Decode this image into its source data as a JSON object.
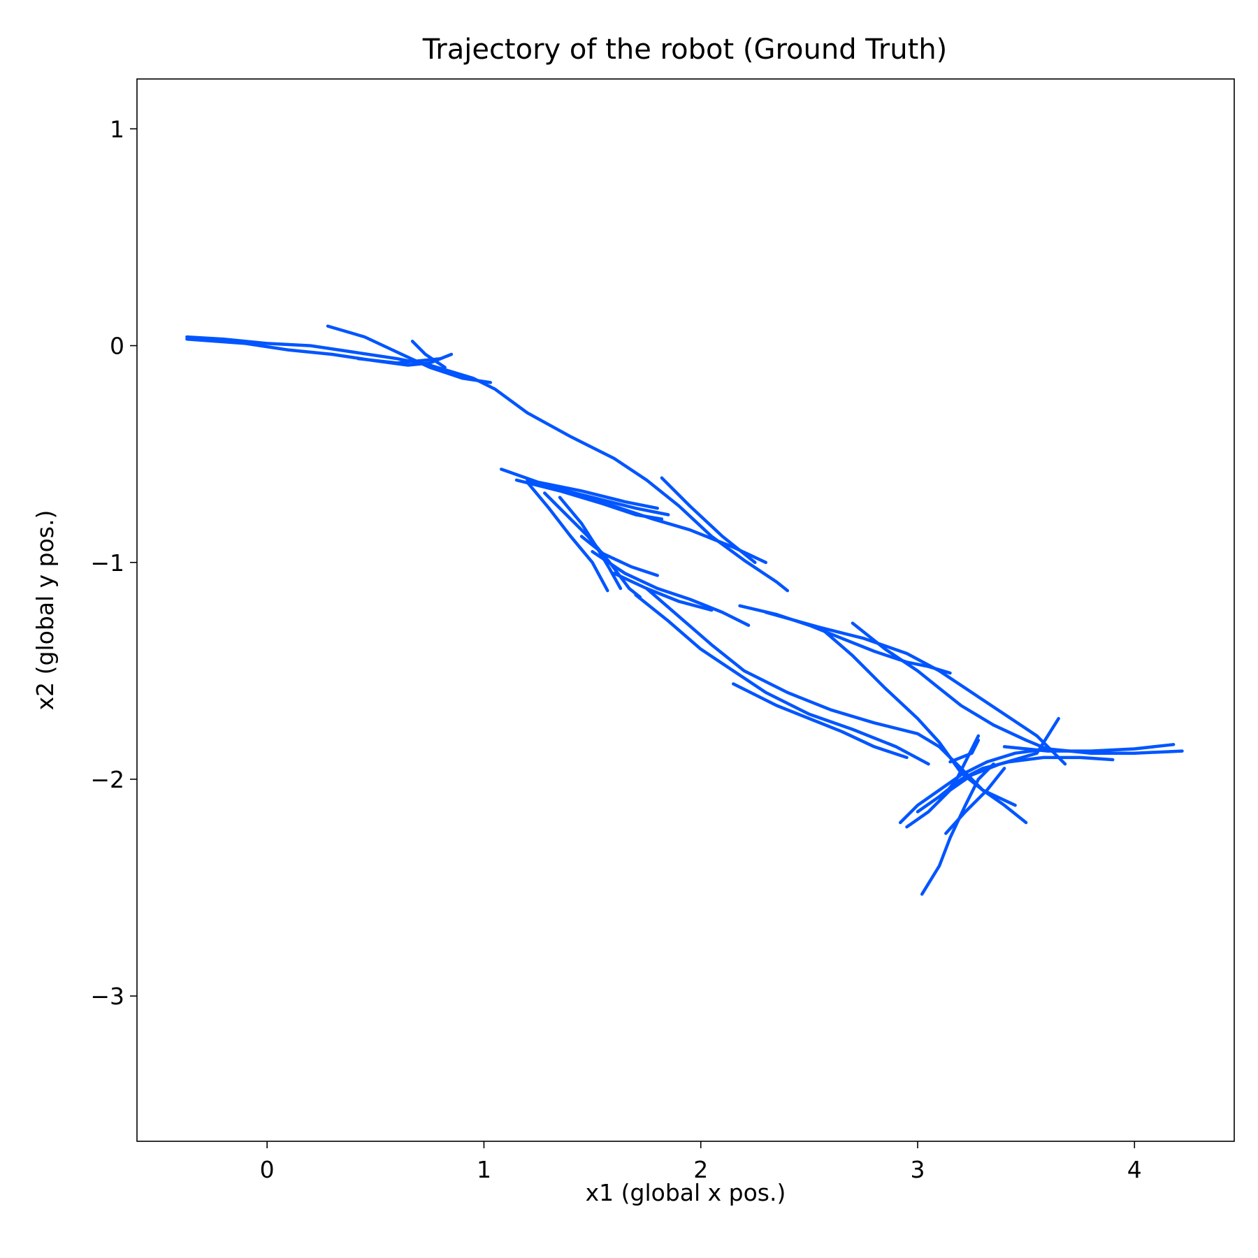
{
  "chart_data": {
    "type": "line",
    "title": "Trajectory of the robot (Ground Truth)",
    "xlabel": "x1 (global x pos.)",
    "ylabel": "x2 (global y pos.)",
    "xlim": [
      -0.6,
      4.46
    ],
    "ylim": [
      -3.67,
      1.23
    ],
    "xticks": [
      0,
      1,
      2,
      3,
      4
    ],
    "xtick_labels": [
      "0",
      "1",
      "2",
      "3",
      "4"
    ],
    "yticks": [
      1,
      0,
      -1,
      -2,
      -3
    ],
    "ytick_labels": [
      "1",
      "0",
      "−1",
      "−2",
      "−3"
    ],
    "grid": false,
    "legend": "none",
    "color": "#0055ff",
    "series": [
      {
        "segments": [
          [
            [
              -0.37,
              0.04
            ],
            [
              -0.2,
              0.03
            ],
            [
              0.0,
              0.01
            ],
            [
              0.2,
              0.0
            ],
            [
              0.4,
              -0.03
            ],
            [
              0.6,
              -0.06
            ],
            [
              0.75,
              -0.09
            ],
            [
              0.85,
              -0.12
            ],
            [
              0.95,
              -0.15
            ],
            [
              1.05,
              -0.2
            ],
            [
              1.2,
              -0.31
            ],
            [
              1.4,
              -0.42
            ],
            [
              1.6,
              -0.52
            ],
            [
              1.75,
              -0.62
            ],
            [
              1.9,
              -0.74
            ],
            [
              2.05,
              -0.88
            ],
            [
              2.2,
              -0.99
            ],
            [
              2.35,
              -1.09
            ],
            [
              2.4,
              -1.13
            ]
          ],
          [
            [
              -0.37,
              0.03
            ],
            [
              -0.1,
              0.01
            ],
            [
              0.1,
              -0.02
            ],
            [
              0.3,
              -0.04
            ],
            [
              0.5,
              -0.07
            ],
            [
              0.65,
              -0.09
            ],
            [
              0.75,
              -0.08
            ],
            [
              0.85,
              -0.04
            ]
          ],
          [
            [
              0.28,
              0.09
            ],
            [
              0.45,
              0.04
            ],
            [
              0.6,
              -0.03
            ],
            [
              0.75,
              -0.1
            ],
            [
              0.9,
              -0.15
            ],
            [
              1.03,
              -0.17
            ]
          ],
          [
            [
              0.42,
              -0.06
            ],
            [
              0.6,
              -0.08
            ],
            [
              0.8,
              -0.06
            ]
          ],
          [
            [
              0.67,
              0.02
            ],
            [
              0.73,
              -0.04
            ],
            [
              0.82,
              -0.1
            ]
          ],
          [
            [
              1.08,
              -0.57
            ],
            [
              1.25,
              -0.63
            ],
            [
              1.45,
              -0.67
            ],
            [
              1.65,
              -0.72
            ],
            [
              1.8,
              -0.75
            ]
          ],
          [
            [
              1.15,
              -0.62
            ],
            [
              1.35,
              -0.67
            ],
            [
              1.55,
              -0.73
            ],
            [
              1.7,
              -0.78
            ],
            [
              1.82,
              -0.8
            ]
          ],
          [
            [
              1.2,
              -0.62
            ],
            [
              1.4,
              -0.68
            ],
            [
              1.6,
              -0.74
            ],
            [
              1.78,
              -0.8
            ],
            [
              1.95,
              -0.85
            ],
            [
              2.15,
              -0.93
            ],
            [
              2.3,
              -1.0
            ]
          ],
          [
            [
              1.3,
              -0.65
            ],
            [
              1.5,
              -0.7
            ],
            [
              1.7,
              -0.75
            ],
            [
              1.85,
              -0.78
            ]
          ],
          [
            [
              1.82,
              -0.61
            ],
            [
              1.95,
              -0.74
            ],
            [
              2.1,
              -0.88
            ],
            [
              2.25,
              -1.0
            ]
          ],
          [
            [
              1.2,
              -0.63
            ],
            [
              1.3,
              -0.75
            ],
            [
              1.4,
              -0.88
            ],
            [
              1.5,
              -1.0
            ],
            [
              1.57,
              -1.13
            ]
          ],
          [
            [
              1.28,
              -0.68
            ],
            [
              1.38,
              -0.78
            ],
            [
              1.48,
              -0.88
            ],
            [
              1.58,
              -1.0
            ],
            [
              1.67,
              -1.12
            ],
            [
              1.72,
              -1.16
            ]
          ],
          [
            [
              1.35,
              -0.7
            ],
            [
              1.45,
              -0.82
            ],
            [
              1.52,
              -0.93
            ],
            [
              1.58,
              -1.03
            ],
            [
              1.63,
              -1.12
            ]
          ],
          [
            [
              1.45,
              -0.88
            ],
            [
              1.55,
              -0.96
            ],
            [
              1.68,
              -1.02
            ],
            [
              1.8,
              -1.06
            ]
          ],
          [
            [
              1.5,
              -0.95
            ],
            [
              1.65,
              -1.05
            ],
            [
              1.8,
              -1.12
            ],
            [
              1.95,
              -1.17
            ],
            [
              2.1,
              -1.23
            ],
            [
              2.22,
              -1.29
            ]
          ],
          [
            [
              1.6,
              -1.05
            ],
            [
              1.75,
              -1.12
            ],
            [
              1.9,
              -1.18
            ],
            [
              2.05,
              -1.22
            ]
          ],
          [
            [
              1.7,
              -1.15
            ],
            [
              1.85,
              -1.27
            ],
            [
              2.0,
              -1.4
            ],
            [
              2.15,
              -1.5
            ],
            [
              2.3,
              -1.6
            ],
            [
              2.5,
              -1.7
            ],
            [
              2.7,
              -1.77
            ],
            [
              2.9,
              -1.85
            ],
            [
              3.05,
              -1.93
            ]
          ],
          [
            [
              1.75,
              -1.12
            ],
            [
              1.9,
              -1.25
            ],
            [
              2.05,
              -1.38
            ],
            [
              2.2,
              -1.5
            ],
            [
              2.4,
              -1.6
            ],
            [
              2.6,
              -1.68
            ],
            [
              2.8,
              -1.74
            ],
            [
              3.0,
              -1.79
            ],
            [
              3.1,
              -1.85
            ],
            [
              3.2,
              -1.95
            ],
            [
              3.3,
              -2.05
            ],
            [
              3.4,
              -2.12
            ],
            [
              3.5,
              -2.2
            ]
          ],
          [
            [
              2.15,
              -1.56
            ],
            [
              2.35,
              -1.66
            ],
            [
              2.5,
              -1.72
            ],
            [
              2.65,
              -1.78
            ],
            [
              2.8,
              -1.85
            ],
            [
              2.95,
              -1.9
            ]
          ],
          [
            [
              2.18,
              -1.2
            ],
            [
              2.35,
              -1.24
            ],
            [
              2.5,
              -1.29
            ],
            [
              2.65,
              -1.35
            ],
            [
              2.8,
              -1.41
            ],
            [
              2.95,
              -1.46
            ],
            [
              3.05,
              -1.48
            ],
            [
              3.15,
              -1.51
            ]
          ],
          [
            [
              2.3,
              -1.23
            ],
            [
              2.55,
              -1.3
            ],
            [
              2.75,
              -1.35
            ],
            [
              2.95,
              -1.42
            ],
            [
              3.1,
              -1.5
            ],
            [
              3.25,
              -1.6
            ],
            [
              3.4,
              -1.7
            ],
            [
              3.55,
              -1.8
            ],
            [
              3.68,
              -1.93
            ]
          ],
          [
            [
              2.7,
              -1.28
            ],
            [
              2.85,
              -1.4
            ],
            [
              3.0,
              -1.5
            ],
            [
              3.1,
              -1.58
            ],
            [
              3.2,
              -1.66
            ],
            [
              3.35,
              -1.75
            ],
            [
              3.5,
              -1.82
            ],
            [
              3.62,
              -1.87
            ]
          ],
          [
            [
              2.55,
              -1.3
            ],
            [
              2.7,
              -1.43
            ],
            [
              2.85,
              -1.58
            ],
            [
              3.0,
              -1.72
            ],
            [
              3.1,
              -1.83
            ],
            [
              3.2,
              -1.97
            ],
            [
              3.3,
              -2.05
            ],
            [
              3.45,
              -2.12
            ]
          ],
          [
            [
              3.02,
              -2.53
            ],
            [
              3.1,
              -2.4
            ],
            [
              3.15,
              -2.27
            ],
            [
              3.22,
              -2.12
            ],
            [
              3.28,
              -2.0
            ],
            [
              3.35,
              -1.93
            ]
          ],
          [
            [
              2.92,
              -2.2
            ],
            [
              3.0,
              -2.12
            ],
            [
              3.1,
              -2.05
            ],
            [
              3.2,
              -1.98
            ],
            [
              3.32,
              -1.92
            ],
            [
              3.45,
              -1.88
            ],
            [
              3.6,
              -1.86
            ],
            [
              3.8,
              -1.88
            ],
            [
              4.0,
              -1.88
            ],
            [
              4.22,
              -1.87
            ]
          ],
          [
            [
              2.95,
              -2.22
            ],
            [
              3.05,
              -2.15
            ],
            [
              3.15,
              -2.05
            ],
            [
              3.25,
              -1.98
            ],
            [
              3.38,
              -1.93
            ],
            [
              3.55,
              -1.88
            ],
            [
              3.65,
              -1.72
            ]
          ],
          [
            [
              3.0,
              -2.15
            ],
            [
              3.1,
              -2.08
            ],
            [
              3.2,
              -2.0
            ],
            [
              3.3,
              -1.95
            ],
            [
              3.42,
              -1.92
            ],
            [
              3.58,
              -1.9
            ],
            [
              3.75,
              -1.9
            ],
            [
              3.9,
              -1.91
            ]
          ],
          [
            [
              3.1,
              -2.1
            ],
            [
              3.18,
              -2.0
            ],
            [
              3.25,
              -1.86
            ],
            [
              3.28,
              -1.8
            ]
          ],
          [
            [
              3.13,
              -2.25
            ],
            [
              3.22,
              -2.15
            ],
            [
              3.32,
              -2.05
            ],
            [
              3.4,
              -1.95
            ]
          ],
          [
            [
              3.4,
              -1.85
            ],
            [
              3.6,
              -1.87
            ],
            [
              3.8,
              -1.87
            ],
            [
              4.0,
              -1.86
            ],
            [
              4.18,
              -1.84
            ]
          ],
          [
            [
              3.15,
              -1.92
            ],
            [
              3.25,
              -1.88
            ],
            [
              3.28,
              -1.82
            ]
          ]
        ]
      }
    ]
  }
}
